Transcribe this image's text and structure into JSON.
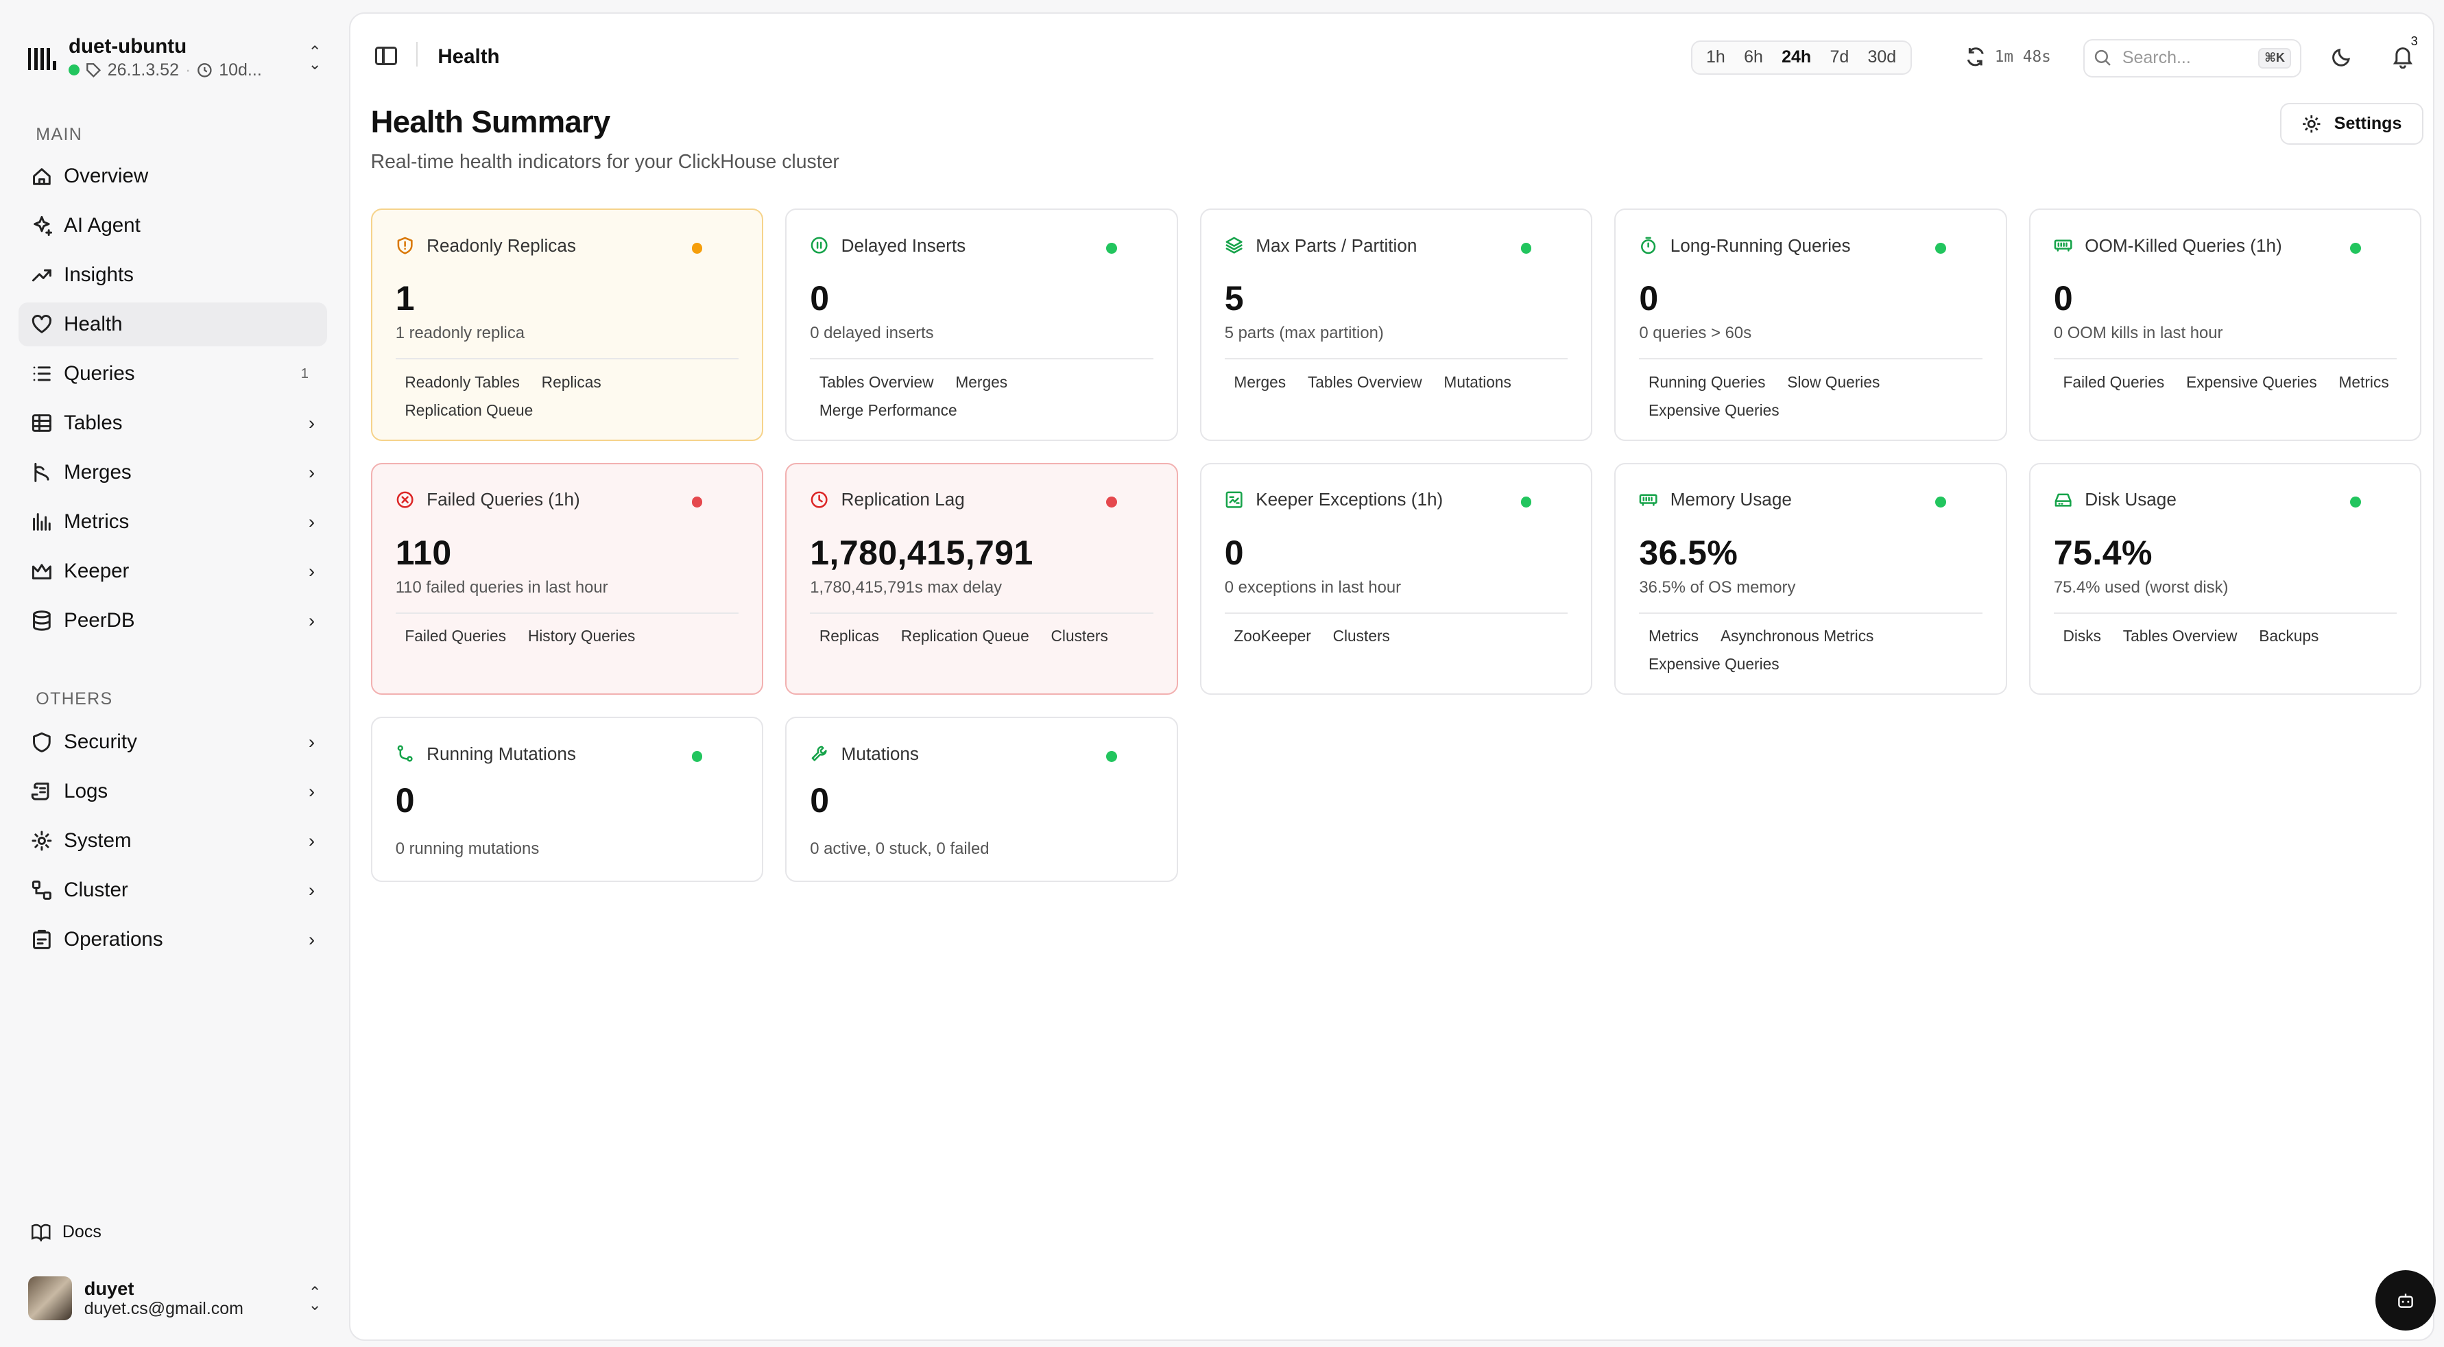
{
  "cluster": {
    "name": "duet-ubuntu",
    "version": "26.1.3.52",
    "uptime": "10d..."
  },
  "sidebar": {
    "main_label": "MAIN",
    "others_label": "OTHERS",
    "main_items": [
      {
        "label": "Overview",
        "icon": "home-icon"
      },
      {
        "label": "AI Agent",
        "icon": "sparkles-icon"
      },
      {
        "label": "Insights",
        "icon": "trending-up-icon"
      },
      {
        "label": "Health",
        "icon": "heart-icon",
        "active": true
      },
      {
        "label": "Queries",
        "icon": "list-icon",
        "count": "1"
      },
      {
        "label": "Tables",
        "icon": "table-icon"
      },
      {
        "label": "Merges",
        "icon": "merge-icon"
      },
      {
        "label": "Metrics",
        "icon": "bar-chart-icon"
      },
      {
        "label": "Keeper",
        "icon": "keeper-icon"
      },
      {
        "label": "PeerDB",
        "icon": "database-icon"
      }
    ],
    "other_items": [
      {
        "label": "Security",
        "icon": "shield-icon"
      },
      {
        "label": "Logs",
        "icon": "scroll-icon"
      },
      {
        "label": "System",
        "icon": "gear-icon"
      },
      {
        "label": "Cluster",
        "icon": "network-icon"
      },
      {
        "label": "Operations",
        "icon": "clipboard-icon"
      }
    ],
    "docs_label": "Docs",
    "user": {
      "name": "duyet",
      "email": "duyet.cs@gmail.com"
    }
  },
  "topbar": {
    "breadcrumb": "Health",
    "ranges": [
      "1h",
      "6h",
      "24h",
      "7d",
      "30d"
    ],
    "active_range": "24h",
    "refresh_countdown": "1m 48s",
    "search_placeholder": "Search...",
    "search_shortcut": "⌘K",
    "notification_count": "3"
  },
  "page": {
    "title": "Health Summary",
    "subtitle": "Real-time health indicators for your ClickHouse cluster",
    "settings_label": "Settings"
  },
  "colors": {
    "ok": "#22c55e",
    "warn": "#f59e0b",
    "crit": "#e5484d"
  },
  "cards": [
    {
      "title": "Readonly Replicas",
      "value": "1",
      "desc": "1 readonly replica",
      "status": "warn",
      "icon": "shield-alert-icon",
      "tags": [
        "Readonly Tables",
        "Replicas",
        "Replication Queue"
      ]
    },
    {
      "title": "Delayed Inserts",
      "value": "0",
      "desc": "0 delayed inserts",
      "status": "ok",
      "icon": "pause-circle-icon",
      "tags": [
        "Tables Overview",
        "Merges",
        "Merge Performance"
      ]
    },
    {
      "title": "Max Parts / Partition",
      "value": "5",
      "desc": "5 parts (max partition)",
      "status": "ok",
      "icon": "layers-icon",
      "tags": [
        "Merges",
        "Tables Overview",
        "Mutations"
      ]
    },
    {
      "title": "Long-Running Queries",
      "value": "0",
      "desc": "0 queries > 60s",
      "status": "ok",
      "icon": "timer-icon",
      "tags": [
        "Running Queries",
        "Slow Queries",
        "Expensive Queries"
      ]
    },
    {
      "title": "OOM-Killed Queries (1h)",
      "value": "0",
      "desc": "0 OOM kills in last hour",
      "status": "ok",
      "icon": "memory-stick-icon",
      "tags": [
        "Failed Queries",
        "Expensive Queries",
        "Metrics"
      ]
    },
    {
      "title": "Failed Queries (1h)",
      "value": "110",
      "desc": "110 failed queries in last hour",
      "status": "crit",
      "icon": "x-circle-icon",
      "tags": [
        "Failed Queries",
        "History Queries"
      ]
    },
    {
      "title": "Replication Lag",
      "value": "1,780,415,791",
      "desc": "1,780,415,791s max delay",
      "status": "crit",
      "icon": "clock-icon",
      "tags": [
        "Replicas",
        "Replication Queue",
        "Clusters"
      ]
    },
    {
      "title": "Keeper Exceptions (1h)",
      "value": "0",
      "desc": "0 exceptions in last hour",
      "status": "ok",
      "icon": "bug-icon",
      "tags": [
        "ZooKeeper",
        "Clusters"
      ]
    },
    {
      "title": "Memory Usage",
      "value": "36.5%",
      "desc": "36.5% of OS memory",
      "status": "ok",
      "icon": "memory-stick-icon",
      "tags": [
        "Metrics",
        "Asynchronous Metrics",
        "Expensive Queries"
      ]
    },
    {
      "title": "Disk Usage",
      "value": "75.4%",
      "desc": "75.4% used (worst disk)",
      "status": "ok",
      "icon": "hard-drive-icon",
      "tags": [
        "Disks",
        "Tables Overview",
        "Backups"
      ]
    },
    {
      "title": "Running Mutations",
      "value": "0",
      "desc": "0 running mutations",
      "status": "ok",
      "icon": "git-branch-icon",
      "tags": []
    },
    {
      "title": "Mutations",
      "value": "0",
      "desc": "0 active, 0 stuck, 0 failed",
      "status": "ok",
      "icon": "wrench-icon",
      "tags": []
    }
  ]
}
